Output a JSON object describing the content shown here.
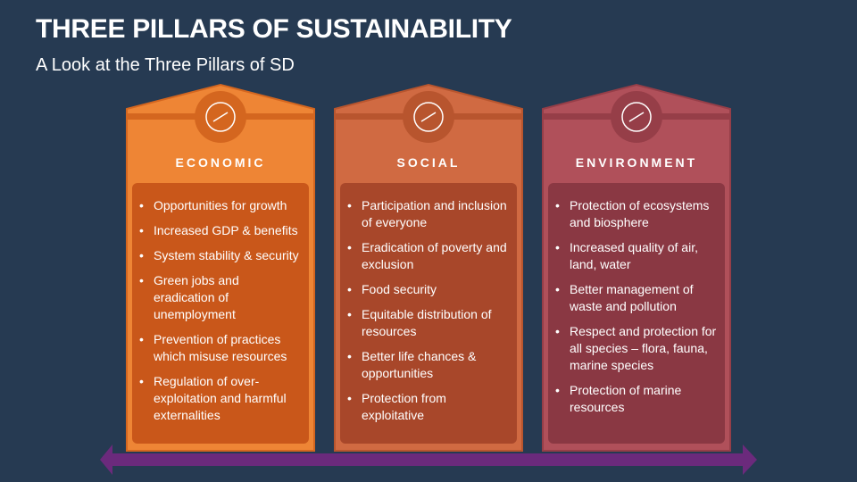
{
  "header": {
    "title": "THREE PILLARS OF SUSTAINABILITY",
    "subtitle": "A Look at the Three Pillars of SD"
  },
  "pillars": [
    {
      "title": "ECONOMIC",
      "items": [
        "Opportunities for growth",
        "Increased GDP & benefits",
        "System stability & security",
        "Green jobs and eradication of unemployment",
        "Prevention of practices which misuse resources",
        "Regulation of over-exploitation and harmful externalities"
      ]
    },
    {
      "title": "SOCIAL",
      "items": [
        "Participation and inclusion of everyone",
        "Eradication of poverty and exclusion",
        "Food security",
        "Equitable distribution of resources",
        "Better life chances & opportunities",
        "Protection from exploitative"
      ]
    },
    {
      "title": "ENVIRONMENT",
      "items": [
        "Protection of ecosystems and biosphere",
        "Increased quality of air, land, water",
        "Better management of waste and pollution",
        "Respect and protection for all species – flora, fauna, marine species",
        "Protection of marine resources"
      ]
    }
  ]
}
